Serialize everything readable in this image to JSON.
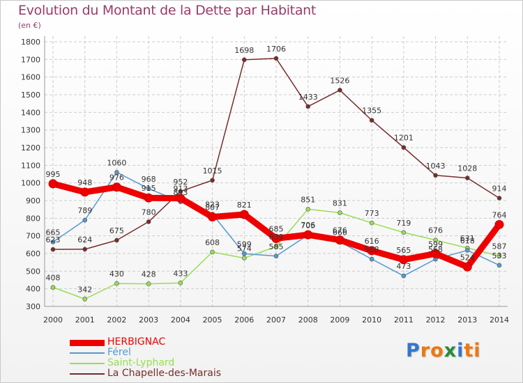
{
  "chart_data": {
    "type": "line",
    "title": "Evolution du Montant de la Dette par Habitant",
    "subtitle": "(en €)",
    "x": [
      "2000",
      "2001",
      "2002",
      "2003",
      "2004",
      "2005",
      "2006",
      "2007",
      "2008",
      "2009",
      "2010",
      "2011",
      "2012",
      "2013",
      "2014"
    ],
    "ylim": [
      300,
      1800
    ],
    "yticks": [
      300,
      400,
      500,
      600,
      700,
      800,
      900,
      1000,
      1100,
      1200,
      1300,
      1400,
      1500,
      1600,
      1700,
      1800
    ],
    "grid": true,
    "legend_position": "bottom-left",
    "series": [
      {
        "name": "HERBIGNAC",
        "color": "#ee0000",
        "values": [
          995,
          948,
          976,
          915,
          913,
          807,
          821,
          685,
          706,
          676,
          616,
          565,
          599,
          524,
          764
        ]
      },
      {
        "name": "Férel",
        "color": "#5599cc",
        "values": [
          665,
          789,
          1060,
          968,
          893,
          823,
          599,
          585,
          705,
          666,
          568,
          473,
          568,
          618,
          533
        ]
      },
      {
        "name": "Saint-Lyphard",
        "color": "#99dd55",
        "values": [
          408,
          342,
          430,
          428,
          433,
          608,
          574,
          639,
          851,
          831,
          773,
          719,
          676,
          631,
          587
        ]
      },
      {
        "name": "La Chapelle-des-Marais",
        "color": "#7a2b2b",
        "values": [
          623,
          624,
          675,
          780,
          952,
          1015,
          1698,
          1706,
          1433,
          1526,
          1355,
          1201,
          1043,
          1028,
          914
        ]
      }
    ]
  },
  "logo": {
    "letters": [
      "P",
      "r",
      "o",
      "x",
      "i",
      "t",
      "i"
    ],
    "colors": [
      "#3377cc",
      "#ee7711",
      "#ee7711",
      "#2a8a3a",
      "#3377cc",
      "#ee7711",
      "#ee7711"
    ]
  }
}
